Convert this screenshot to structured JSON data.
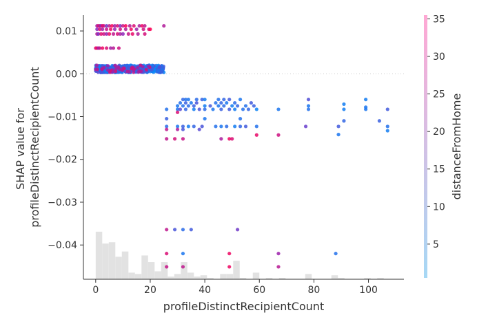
{
  "chart_data": {
    "type": "scatter",
    "title": "",
    "xlabel": "profileDistinctRecipientCount",
    "ylabel_lines": [
      "SHAP value for",
      "profileDistinctRecipientCount"
    ],
    "xlim": [
      -4.5,
      113
    ],
    "ylim": [
      -0.048,
      0.0137
    ],
    "x_ticks": [
      0,
      20,
      40,
      60,
      80,
      100
    ],
    "y_ticks": [
      0.01,
      0.0,
      -0.01,
      -0.02,
      -0.03,
      -0.04
    ],
    "y_tick_labels": [
      "0.01",
      "0.00",
      "−0.01",
      "−0.02",
      "−0.03",
      "−0.04"
    ],
    "zero_line": true,
    "colorbar": {
      "label": "distanceFromHome",
      "min": 0.5,
      "max": 35.5,
      "ticks": [
        5,
        10,
        15,
        20,
        25,
        30,
        35
      ],
      "color_low": "#a6d8f5",
      "color_high": "#ffa8d4"
    },
    "histogram": {
      "bin_width": 2.4,
      "bins": [
        {
          "x": 0.0,
          "count": 36
        },
        {
          "x": 2.4,
          "count": 27
        },
        {
          "x": 4.8,
          "count": 28
        },
        {
          "x": 7.2,
          "count": 17
        },
        {
          "x": 9.6,
          "count": 21
        },
        {
          "x": 12.0,
          "count": 5
        },
        {
          "x": 14.4,
          "count": 4
        },
        {
          "x": 16.8,
          "count": 18
        },
        {
          "x": 19.2,
          "count": 13
        },
        {
          "x": 21.6,
          "count": 6
        },
        {
          "x": 24.0,
          "count": 13
        },
        {
          "x": 26.4,
          "count": 2
        },
        {
          "x": 28.8,
          "count": 4
        },
        {
          "x": 31.2,
          "count": 13
        },
        {
          "x": 33.6,
          "count": 5
        },
        {
          "x": 36.0,
          "count": 2
        },
        {
          "x": 38.4,
          "count": 3
        },
        {
          "x": 40.8,
          "count": 1
        },
        {
          "x": 45.6,
          "count": 4
        },
        {
          "x": 48.0,
          "count": 4
        },
        {
          "x": 50.4,
          "count": 14
        },
        {
          "x": 52.8,
          "count": 1
        },
        {
          "x": 57.6,
          "count": 5
        },
        {
          "x": 62.4,
          "count": 1
        },
        {
          "x": 67.2,
          "count": 1
        },
        {
          "x": 76.8,
          "count": 4
        },
        {
          "x": 86.4,
          "count": 3
        },
        {
          "x": 88.8,
          "count": 1
        },
        {
          "x": 98.4,
          "count": 1
        },
        {
          "x": 103.2,
          "count": 1
        }
      ]
    },
    "clusters": [
      {
        "y_min": 0.0003,
        "y_max": 0.002,
        "x_min": 0,
        "x_max": 25,
        "dist_min": 1,
        "dist_max": 12,
        "count": 380
      },
      {
        "y_min": 0.0003,
        "y_max": 0.002,
        "x_min": 0,
        "x_max": 20,
        "dist_min": 20,
        "dist_max": 30,
        "count": 40
      }
    ],
    "points": [
      [
        0.5,
        0.0112,
        22
      ],
      [
        1.0,
        0.0112,
        30
      ],
      [
        1.5,
        0.0112,
        25
      ],
      [
        2.0,
        0.0112,
        18
      ],
      [
        2.5,
        0.0112,
        33
      ],
      [
        3.0,
        0.0112,
        28
      ],
      [
        4.0,
        0.0112,
        15
      ],
      [
        5.0,
        0.0112,
        26
      ],
      [
        6.0,
        0.0112,
        34
      ],
      [
        7.0,
        0.0112,
        22
      ],
      [
        8.0,
        0.0112,
        30
      ],
      [
        9.0,
        0.0112,
        16
      ],
      [
        10.0,
        0.0112,
        27
      ],
      [
        11.0,
        0.0112,
        35
      ],
      [
        12.5,
        0.0112,
        24
      ],
      [
        14.0,
        0.0112,
        30
      ],
      [
        16.0,
        0.0112,
        23
      ],
      [
        17.0,
        0.0112,
        33
      ],
      [
        18.0,
        0.0112,
        26
      ],
      [
        25.0,
        0.0112,
        24
      ],
      [
        0.5,
        0.0104,
        18
      ],
      [
        1.5,
        0.0104,
        31
      ],
      [
        2.5,
        0.0104,
        22
      ],
      [
        4.0,
        0.0104,
        27
      ],
      [
        5.5,
        0.0104,
        33
      ],
      [
        7.0,
        0.0104,
        20
      ],
      [
        9.0,
        0.0104,
        29
      ],
      [
        11.0,
        0.0104,
        24
      ],
      [
        13.0,
        0.0104,
        34
      ],
      [
        15.0,
        0.0104,
        21
      ],
      [
        17.5,
        0.0104,
        28
      ],
      [
        19.5,
        0.0104,
        30
      ],
      [
        20.0,
        0.0104,
        35
      ],
      [
        0.5,
        0.0093,
        25
      ],
      [
        1.0,
        0.0093,
        17
      ],
      [
        2.0,
        0.0093,
        31
      ],
      [
        3.0,
        0.0093,
        28
      ],
      [
        4.0,
        0.0093,
        20
      ],
      [
        5.0,
        0.0093,
        33
      ],
      [
        6.5,
        0.0093,
        26
      ],
      [
        8.0,
        0.0093,
        30
      ],
      [
        9.0,
        0.0093,
        23
      ],
      [
        10.0,
        0.0093,
        19
      ],
      [
        12.0,
        0.0093,
        27
      ],
      [
        13.5,
        0.0093,
        32
      ],
      [
        15.5,
        0.0093,
        24
      ],
      [
        18.0,
        0.0093,
        29
      ],
      [
        0.0,
        0.006,
        30
      ],
      [
        0.5,
        0.006,
        34
      ],
      [
        1.0,
        0.006,
        21
      ],
      [
        1.5,
        0.006,
        27
      ],
      [
        2.5,
        0.006,
        33
      ],
      [
        4.0,
        0.006,
        30
      ],
      [
        5.5,
        0.006,
        22
      ],
      [
        6.5,
        0.006,
        25
      ],
      [
        8.5,
        0.006,
        28
      ],
      [
        26,
        -0.0083,
        5
      ],
      [
        30,
        -0.0083,
        4
      ],
      [
        31,
        -0.0083,
        12
      ],
      [
        33,
        -0.0083,
        7
      ],
      [
        36,
        -0.0083,
        3
      ],
      [
        38,
        -0.0083,
        10
      ],
      [
        40,
        -0.0083,
        6
      ],
      [
        43,
        -0.0083,
        4
      ],
      [
        46,
        -0.0083,
        8
      ],
      [
        49,
        -0.0083,
        9
      ],
      [
        51,
        -0.0083,
        3
      ],
      [
        54,
        -0.0083,
        5
      ],
      [
        56,
        -0.0083,
        7
      ],
      [
        59,
        -0.0083,
        2
      ],
      [
        67,
        -0.0083,
        4
      ],
      [
        78,
        -0.0083,
        5
      ],
      [
        91,
        -0.0083,
        3
      ],
      [
        99,
        -0.0083,
        4
      ],
      [
        107,
        -0.0083,
        9
      ],
      [
        30,
        -0.0075,
        4
      ],
      [
        32,
        -0.0075,
        5
      ],
      [
        34,
        -0.0075,
        6
      ],
      [
        36,
        -0.0075,
        8
      ],
      [
        40,
        -0.0075,
        3
      ],
      [
        42,
        -0.0075,
        9
      ],
      [
        45,
        -0.0075,
        4
      ],
      [
        47,
        -0.0075,
        6
      ],
      [
        50,
        -0.0075,
        3
      ],
      [
        52,
        -0.0075,
        7
      ],
      [
        55,
        -0.0075,
        5
      ],
      [
        58,
        -0.0075,
        8
      ],
      [
        78,
        -0.0075,
        4
      ],
      [
        31,
        -0.0068,
        5
      ],
      [
        33,
        -0.0068,
        8
      ],
      [
        35,
        -0.0068,
        4
      ],
      [
        37,
        -0.0068,
        10
      ],
      [
        44,
        -0.0068,
        5
      ],
      [
        46,
        -0.0068,
        7
      ],
      [
        48,
        -0.0068,
        4
      ],
      [
        51,
        -0.0068,
        6
      ],
      [
        57,
        -0.0068,
        9
      ],
      [
        32,
        -0.006,
        7
      ],
      [
        33,
        -0.006,
        5
      ],
      [
        34,
        -0.006,
        4
      ],
      [
        37,
        -0.006,
        6
      ],
      [
        39,
        -0.006,
        8
      ],
      [
        40,
        -0.006,
        3
      ],
      [
        45,
        -0.006,
        5
      ],
      [
        47,
        -0.006,
        7
      ],
      [
        49,
        -0.006,
        9
      ],
      [
        53,
        -0.006,
        4
      ],
      [
        78,
        -0.006,
        11
      ],
      [
        99,
        -0.006,
        3
      ],
      [
        91,
        -0.0071,
        3
      ],
      [
        99,
        -0.0078,
        4
      ],
      [
        30,
        -0.009,
        30
      ],
      [
        26,
        -0.0105,
        8
      ],
      [
        40,
        -0.0105,
        4
      ],
      [
        53,
        -0.0105,
        5
      ],
      [
        26,
        -0.0123,
        6
      ],
      [
        30,
        -0.0123,
        4
      ],
      [
        32,
        -0.0123,
        8
      ],
      [
        34,
        -0.0123,
        3
      ],
      [
        36,
        -0.0123,
        7
      ],
      [
        39,
        -0.0123,
        10
      ],
      [
        44,
        -0.0123,
        5
      ],
      [
        46,
        -0.0123,
        4
      ],
      [
        48,
        -0.0123,
        6
      ],
      [
        51,
        -0.0123,
        3
      ],
      [
        53,
        -0.0123,
        7
      ],
      [
        55,
        -0.0123,
        9
      ],
      [
        59,
        -0.0123,
        5
      ],
      [
        77,
        -0.0123,
        14
      ],
      [
        89,
        -0.0123,
        9
      ],
      [
        107,
        -0.0123,
        5
      ],
      [
        26,
        -0.013,
        26
      ],
      [
        30,
        -0.013,
        24
      ],
      [
        32,
        -0.013,
        10
      ],
      [
        38,
        -0.013,
        12
      ],
      [
        104,
        -0.011,
        8
      ],
      [
        91,
        -0.011,
        7
      ],
      [
        89,
        -0.0142,
        4
      ],
      [
        107,
        -0.0133,
        3
      ],
      [
        26,
        -0.0152,
        26
      ],
      [
        29,
        -0.0152,
        29
      ],
      [
        32,
        -0.0152,
        27
      ],
      [
        46,
        -0.0152,
        23
      ],
      [
        49,
        -0.0152,
        33
      ],
      [
        50,
        -0.0152,
        30
      ],
      [
        59,
        -0.0143,
        32
      ],
      [
        67,
        -0.0143,
        28
      ],
      [
        26,
        -0.0364,
        26
      ],
      [
        29,
        -0.0364,
        10
      ],
      [
        32,
        -0.0364,
        6
      ],
      [
        35,
        -0.0364,
        9
      ],
      [
        52,
        -0.0364,
        15
      ],
      [
        26,
        -0.042,
        30
      ],
      [
        32,
        -0.042,
        4
      ],
      [
        49,
        -0.042,
        33
      ],
      [
        67,
        -0.042,
        21
      ],
      [
        88,
        -0.042,
        5
      ],
      [
        26,
        -0.0451,
        27
      ],
      [
        32,
        -0.0451,
        26
      ],
      [
        49,
        -0.0451,
        33
      ],
      [
        67,
        -0.0451,
        25
      ]
    ]
  }
}
